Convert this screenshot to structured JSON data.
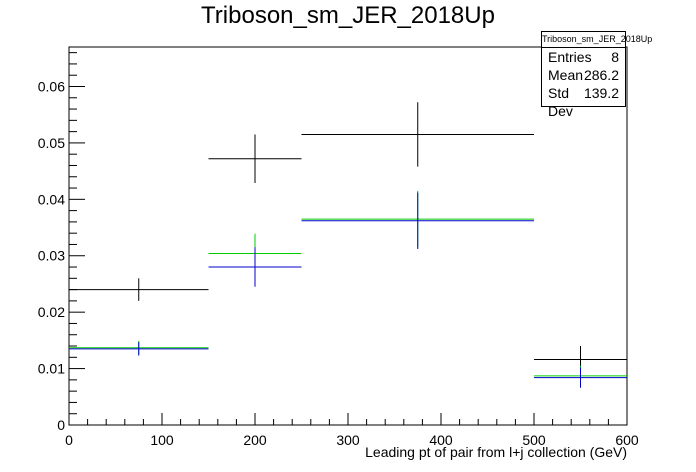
{
  "chart_data": {
    "type": "histogram-errorbars",
    "title": "Triboson_sm_JER_2018Up",
    "xlabel": "Leading pt of pair from l+j collection (GeV)",
    "ylabel": "",
    "xlim": [
      0,
      600
    ],
    "ylim": [
      0,
      0.067
    ],
    "x_ticks": [
      0,
      100,
      200,
      300,
      400,
      500,
      600
    ],
    "x_tick_labels": [
      "0",
      "100",
      "200",
      "300",
      "400",
      "500",
      "600"
    ],
    "y_ticks": [
      0,
      0.01,
      0.02,
      0.03,
      0.04,
      0.05,
      0.06
    ],
    "y_tick_labels": [
      "0",
      "0.01",
      "0.02",
      "0.03",
      "0.04",
      "0.05",
      "0.06"
    ],
    "grid": false,
    "series": [
      {
        "color": "#000000",
        "bins": [
          {
            "x0": 0,
            "x1": 150,
            "y": 0.024,
            "err": 0.002
          },
          {
            "x0": 150,
            "x1": 250,
            "y": 0.0472,
            "err": 0.0043
          },
          {
            "x0": 250,
            "x1": 500,
            "y": 0.0515,
            "err": 0.0057
          },
          {
            "x0": 500,
            "x1": 600,
            "y": 0.0116,
            "err": 0.0024
          }
        ]
      },
      {
        "color": "#00cc00",
        "bins": [
          {
            "x0": 0,
            "x1": 150,
            "y": 0.0137,
            "err": 0.0012
          },
          {
            "x0": 150,
            "x1": 250,
            "y": 0.0304,
            "err": 0.0035
          },
          {
            "x0": 250,
            "x1": 500,
            "y": 0.0365,
            "err": 0.005
          },
          {
            "x0": 500,
            "x1": 600,
            "y": 0.0087,
            "err": 0.0018
          }
        ]
      },
      {
        "color": "#0000cc",
        "bins": [
          {
            "x0": 0,
            "x1": 150,
            "y": 0.0135,
            "err": 0.0012
          },
          {
            "x0": 150,
            "x1": 250,
            "y": 0.028,
            "err": 0.0035
          },
          {
            "x0": 250,
            "x1": 500,
            "y": 0.0362,
            "err": 0.005
          },
          {
            "x0": 500,
            "x1": 600,
            "y": 0.0084,
            "err": 0.0018
          }
        ]
      }
    ]
  },
  "stats": {
    "title": "Triboson_sm_JER_2018Up",
    "entries_label": "Entries",
    "entries_value": "8",
    "mean_label": "Mean",
    "mean_value": "286.2",
    "stddev_label": "Std Dev",
    "stddev_value": "139.2"
  }
}
